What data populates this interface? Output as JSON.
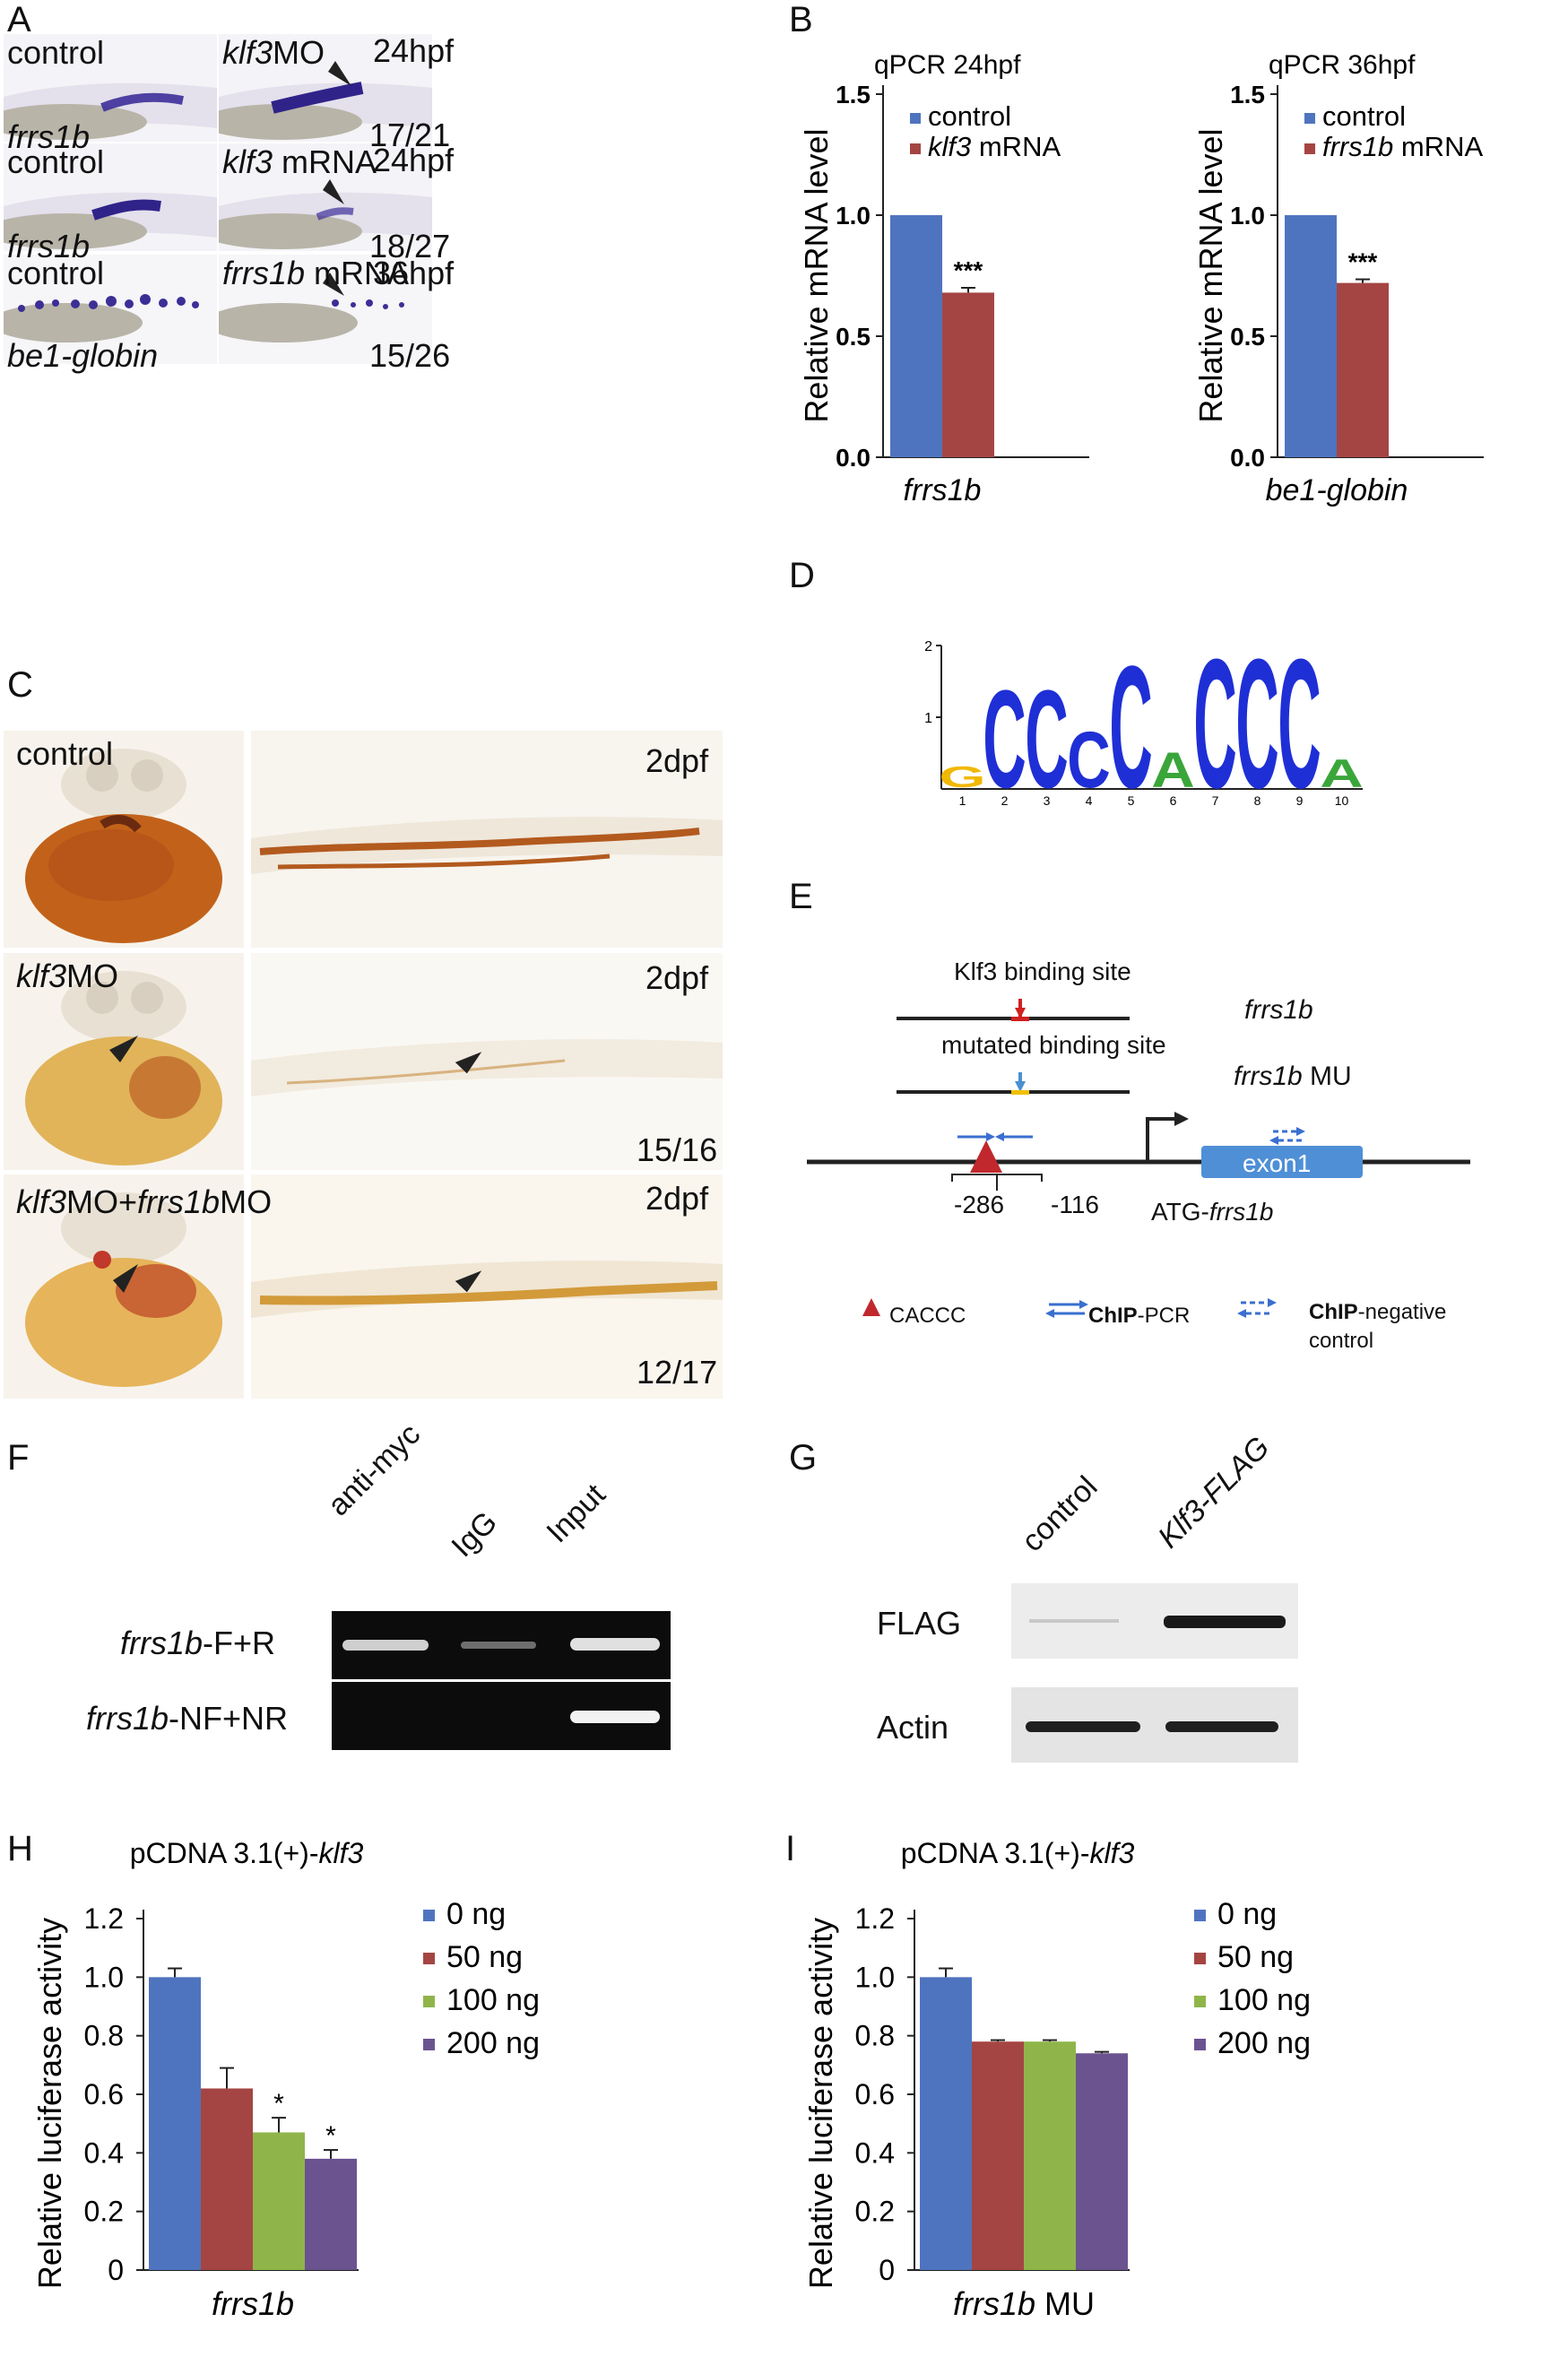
{
  "panels": {
    "A": "A",
    "B": "B",
    "C": "C",
    "D": "D",
    "E": "E",
    "F": "F",
    "G": "G",
    "H": "H",
    "I": "I"
  },
  "panelA": {
    "r1": {
      "left_label": "control",
      "gene": "frrs1b",
      "right_italic": "klf3",
      "right_label": "MO",
      "stage": "24hpf",
      "count": "17/21"
    },
    "r2": {
      "left_label": "control",
      "gene": "frrs1b",
      "right_italic": "klf3",
      "right_label": " mRNA",
      "stage": "24hpf",
      "count": "18/27"
    },
    "r3": {
      "left_label": "control",
      "gene": "be1-globin",
      "right_italic": "frrs1b",
      "right_label": " mRNA",
      "stage": "36hpf",
      "count": "15/26"
    }
  },
  "panelC": {
    "r1": {
      "label": "control",
      "stage": "2dpf",
      "count": ""
    },
    "r2": {
      "label_italic": "klf3",
      "label": "MO",
      "stage": "2dpf",
      "count": "15/16"
    },
    "r3": {
      "label_italic": "klf3",
      "label_mid": "MO+",
      "label_italic2": "frrs1b",
      "label": "MO",
      "stage": "2dpf",
      "count": "12/17"
    }
  },
  "panelE": {
    "binding_site": "Klf3 binding site",
    "mutated_site": "mutated binding site",
    "frrs1b": "frrs1b",
    "frrs1b_mu_gene": "frrs1b",
    "frrs1b_mu_suffix": " MU",
    "exon": "exon1",
    "pos1": "-286",
    "pos2": "-116",
    "atg_prefix": "ATG-",
    "atg_gene": "frrs1b",
    "legend_caccc": "CACCC",
    "legend_chip_bold": "ChIP",
    "legend_chip": "-PCR",
    "legend_neg_bold": "ChIP",
    "legend_neg": "-negative",
    "legend_neg2": "control"
  },
  "panelF": {
    "lanes": [
      "anti-myc",
      "IgG",
      "Input"
    ],
    "row1_gene": "frrs1b",
    "row1_suffix": "-F+R",
    "row2_gene": "frrs1b",
    "row2_suffix": "-NF+NR"
  },
  "panelG": {
    "lanes": [
      "control",
      "Klf3-FLAG"
    ],
    "row1": "FLAG",
    "row2": "Actin"
  },
  "colors": {
    "blue": "#4f74bf",
    "red": "#a44543",
    "green": "#8fb54a",
    "purple": "#6b5390",
    "chip_arrow": "#3a6fd0",
    "caccc": "#c0282d",
    "exon": "#4f8fd6"
  },
  "chart_data": [
    {
      "id": "B1",
      "type": "bar",
      "title": "qPCR   24hpf",
      "ylabel": "Relative mRNA level",
      "category": "frrs1b",
      "ylim": [
        0,
        1.5
      ],
      "yticks": [
        "0.0",
        "0.5",
        "1.0",
        "1.5"
      ],
      "series": [
        {
          "name": "control",
          "value": 1.0,
          "error": 0,
          "sig": ""
        },
        {
          "name": "klf3 mRNA",
          "name_italic": "klf3",
          "name_rest": " mRNA",
          "value": 0.68,
          "error": 0.02,
          "sig": "***"
        }
      ]
    },
    {
      "id": "B2",
      "type": "bar",
      "title": "qPCR   36hpf",
      "ylabel": "Relative mRNA level",
      "category": "be1-globin",
      "ylim": [
        0,
        1.5
      ],
      "yticks": [
        "0.0",
        "0.5",
        "1.0",
        "1.5"
      ],
      "series": [
        {
          "name": "control",
          "value": 1.0,
          "error": 0,
          "sig": ""
        },
        {
          "name": "frrs1b mRNA",
          "name_italic": "frrs1b",
          "name_rest": " mRNA",
          "value": 0.72,
          "error": 0.015,
          "sig": "***"
        }
      ]
    },
    {
      "id": "D",
      "type": "sequence-logo",
      "yticks": [
        "1",
        "2"
      ],
      "positions": [
        "1",
        "2",
        "3",
        "4",
        "5",
        "6",
        "7",
        "8",
        "9",
        "10"
      ],
      "letters": [
        "G",
        "C",
        "C",
        "C",
        "C",
        "A",
        "C",
        "C",
        "C",
        "A"
      ]
    },
    {
      "id": "H",
      "type": "bar",
      "title_prefix": "pCDNA 3.1(+)-",
      "title_italic": "klf3",
      "ylabel": "Relative luciferase activity",
      "category": "frrs1b",
      "category_suffix": "",
      "ylim": [
        0,
        1.2
      ],
      "yticks": [
        "0",
        "0.2",
        "0.4",
        "0.6",
        "0.8",
        "1.0",
        "1.2"
      ],
      "series": [
        {
          "name": "0 ng",
          "value": 1.0,
          "error": 0.03,
          "sig": ""
        },
        {
          "name": "50 ng",
          "value": 0.62,
          "error": 0.07,
          "sig": ""
        },
        {
          "name": "100 ng",
          "value": 0.47,
          "error": 0.05,
          "sig": "*"
        },
        {
          "name": "200 ng",
          "value": 0.38,
          "error": 0.03,
          "sig": "*"
        }
      ]
    },
    {
      "id": "I",
      "type": "bar",
      "title_prefix": "pCDNA 3.1(+)-",
      "title_italic": "klf3",
      "ylabel": "Relative luciferase activity",
      "category": "frrs1b",
      "category_suffix": " MU",
      "ylim": [
        0,
        1.2
      ],
      "yticks": [
        "0",
        "0.2",
        "0.4",
        "0.6",
        "0.8",
        "1.0",
        "1.2"
      ],
      "series": [
        {
          "name": "0 ng",
          "value": 1.0,
          "error": 0.03,
          "sig": ""
        },
        {
          "name": "50 ng",
          "value": 0.78,
          "error": 0.005,
          "sig": ""
        },
        {
          "name": "100 ng",
          "value": 0.78,
          "error": 0.005,
          "sig": ""
        },
        {
          "name": "200 ng",
          "value": 0.74,
          "error": 0.005,
          "sig": ""
        }
      ]
    }
  ]
}
